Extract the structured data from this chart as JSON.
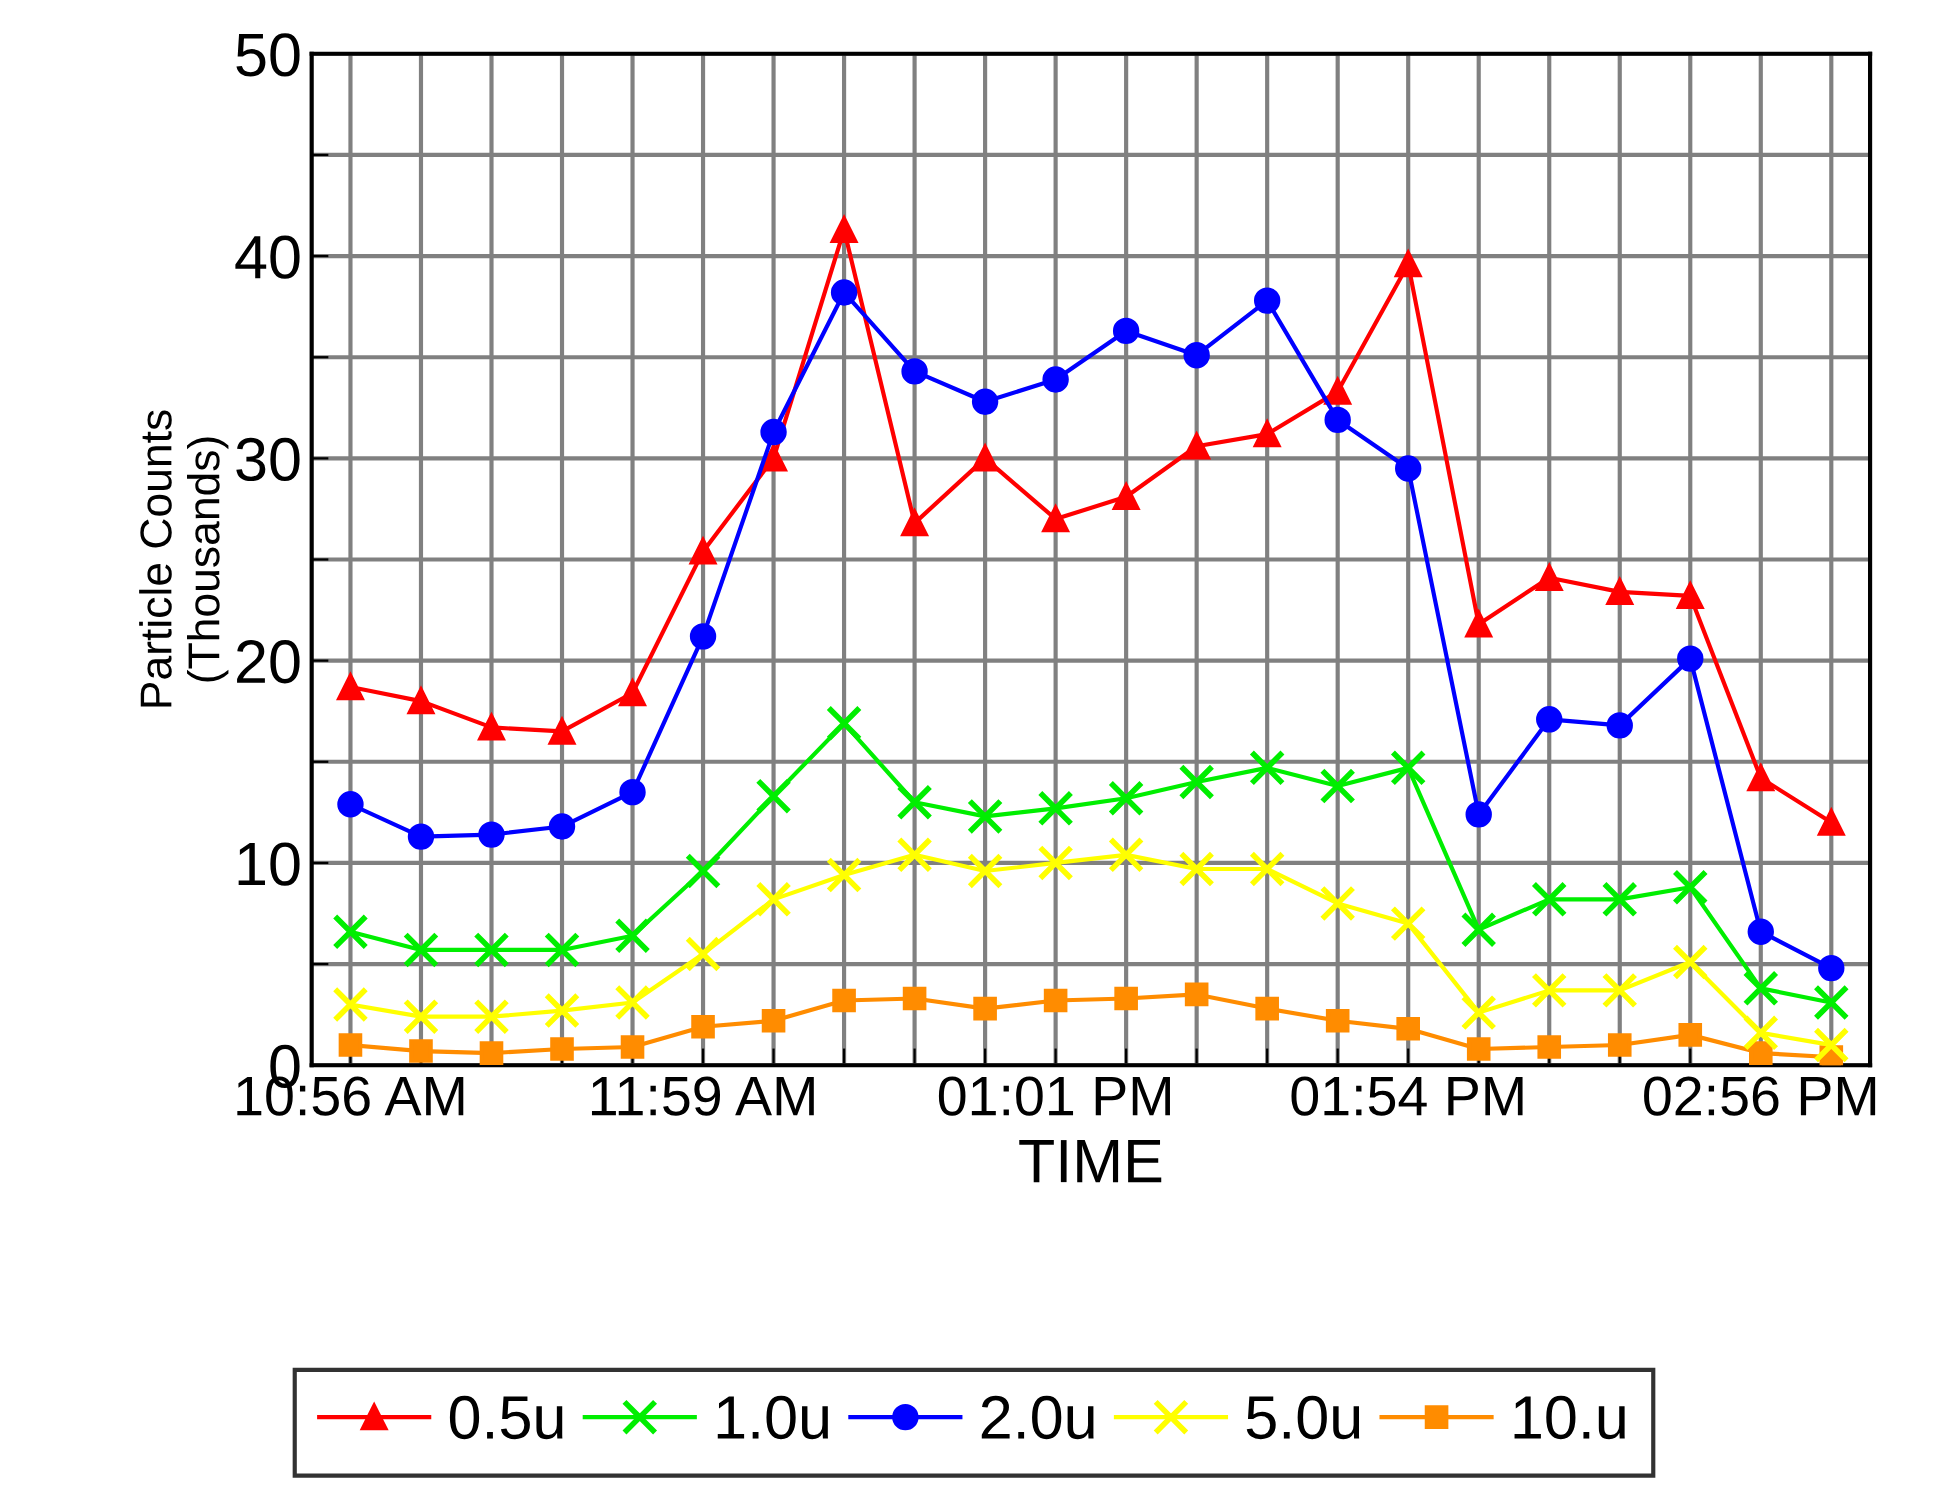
{
  "chart_data": {
    "type": "line",
    "xlabel": "TIME",
    "ylabel": "Particle Counts\n(Thousands)",
    "categories": [
      "10:56 AM",
      null,
      null,
      null,
      null,
      "11:59 AM",
      null,
      null,
      null,
      null,
      "01:01 PM",
      null,
      null,
      null,
      null,
      "01:54 PM",
      null,
      null,
      null,
      null,
      "02:56 PM",
      null
    ],
    "series": [
      {
        "name": "0.5u",
        "color": "#ff0000",
        "marker": "triangle",
        "values": [
          18.7,
          18.0,
          16.7,
          16.5,
          18.4,
          25.4,
          30.0,
          41.3,
          26.8,
          30.0,
          27.0,
          28.1,
          30.6,
          31.2,
          33.3,
          39.6,
          21.8,
          24.1,
          23.4,
          23.2,
          14.2,
          12.0
        ]
      },
      {
        "name": "1.0u",
        "color": "#00ee00",
        "marker": "cross",
        "values": [
          6.6,
          5.7,
          5.7,
          5.7,
          6.4,
          9.6,
          13.3,
          16.9,
          13.0,
          12.3,
          12.7,
          13.2,
          14.0,
          14.7,
          13.8,
          14.7,
          6.7,
          8.2,
          8.2,
          8.8,
          3.8,
          3.1
        ]
      },
      {
        "name": "2.0u",
        "color": "#0000ff",
        "marker": "circle",
        "values": [
          12.9,
          11.3,
          11.4,
          11.8,
          13.5,
          21.2,
          31.3,
          38.2,
          34.3,
          32.8,
          33.9,
          36.3,
          35.1,
          37.8,
          31.9,
          29.5,
          12.4,
          17.1,
          16.8,
          20.1,
          6.6,
          4.8
        ]
      },
      {
        "name": "5.0u",
        "color": "#ffff00",
        "marker": "cross",
        "values": [
          3.0,
          2.4,
          2.4,
          2.7,
          3.1,
          5.5,
          8.2,
          9.4,
          10.4,
          9.6,
          10.0,
          10.4,
          9.7,
          9.7,
          8.0,
          7.0,
          2.6,
          3.7,
          3.7,
          5.1,
          1.6,
          1.0
        ]
      },
      {
        "name": "10.u",
        "color": "#ff8c00",
        "marker": "square",
        "values": [
          1.0,
          0.7,
          0.6,
          0.8,
          0.9,
          1.9,
          2.2,
          3.2,
          3.3,
          2.8,
          3.2,
          3.3,
          3.5,
          2.8,
          2.2,
          1.8,
          0.8,
          0.9,
          1.0,
          1.5,
          0.6,
          0.4
        ]
      }
    ],
    "ylim": [
      0,
      50
    ],
    "yticks": [
      0,
      {
        "value": 5,
        "label": null
      },
      10,
      {
        "value": 15,
        "label": null
      },
      20,
      {
        "value": 25,
        "label": null
      },
      30,
      {
        "value": 35,
        "label": null
      },
      40,
      {
        "value": 45,
        "label": null
      },
      50
    ],
    "grid": true,
    "legend": "bottom",
    "line_style": "solid"
  }
}
